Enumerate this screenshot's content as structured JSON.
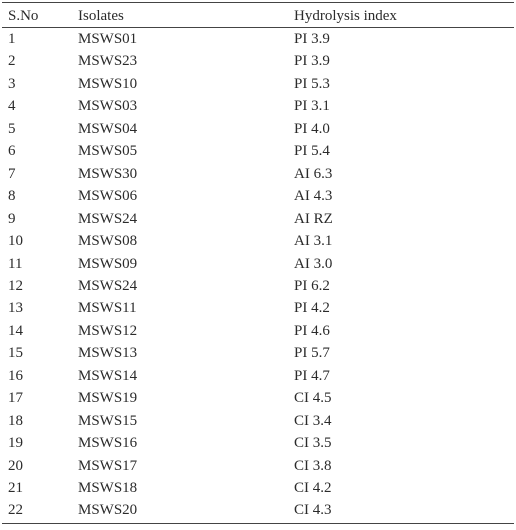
{
  "table": {
    "header": [
      "S.No",
      "Isolates",
      "Hydrolysis index"
    ],
    "rows": [
      [
        "1",
        "MSWS01",
        "PI 3.9"
      ],
      [
        "2",
        "MSWS23",
        "PI 3.9"
      ],
      [
        "3",
        "MSWS10",
        "PI 5.3"
      ],
      [
        "4",
        "MSWS03",
        "PI 3.1"
      ],
      [
        "5",
        "MSWS04",
        "PI 4.0"
      ],
      [
        "6",
        "MSWS05",
        "PI 5.4"
      ],
      [
        "7",
        "MSWS30",
        "AI 6.3"
      ],
      [
        "8",
        "MSWS06",
        "AI 4.3"
      ],
      [
        "9",
        "MSWS24",
        "AI RZ"
      ],
      [
        "10",
        "MSWS08",
        "AI 3.1"
      ],
      [
        "11",
        "MSWS09",
        "AI 3.0"
      ],
      [
        "12",
        "MSWS24",
        "PI 6.2"
      ],
      [
        "13",
        "MSWS11",
        "PI 4.2"
      ],
      [
        "14",
        "MSWS12",
        "PI 4.6"
      ],
      [
        "15",
        "MSWS13",
        "PI 5.7"
      ],
      [
        "16",
        "MSWS14",
        "PI 4.7"
      ],
      [
        "17",
        "MSWS19",
        "CI 4.5"
      ],
      [
        "18",
        "MSWS15",
        "CI 3.4"
      ],
      [
        "19",
        "MSWS16",
        "CI 3.5"
      ],
      [
        "20",
        "MSWS17",
        "CI 3.8"
      ],
      [
        "21",
        "MSWS18",
        "CI 4.2"
      ],
      [
        "22",
        "MSWS20",
        "CI 4.3"
      ]
    ]
  }
}
